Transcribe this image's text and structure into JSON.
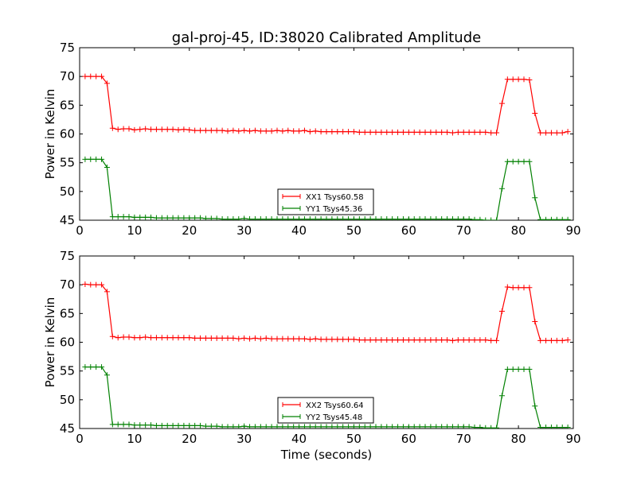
{
  "figure": {
    "title": "gal-proj-45, ID:38020 Calibrated Amplitude",
    "xlabel": "Time (seconds)"
  },
  "chart_data": [
    {
      "type": "line",
      "title": "gal-proj-45, ID:38020 Calibrated Amplitude",
      "xlabel": "",
      "ylabel": "Power in Kelvin",
      "xlim": [
        0,
        90
      ],
      "ylim": [
        45,
        75
      ],
      "xticks": [
        0,
        10,
        20,
        30,
        40,
        50,
        60,
        70,
        80,
        90
      ],
      "yticks": [
        45,
        50,
        55,
        60,
        65,
        70,
        75
      ],
      "grid": false,
      "legend_position": "bottom-center",
      "series": [
        {
          "name": "XX1 Tsys60.58",
          "color": "#ff0000",
          "marker": "+",
          "x": [
            1,
            2,
            3,
            4,
            5,
            6,
            7,
            8,
            9,
            10,
            11,
            12,
            13,
            14,
            15,
            16,
            17,
            18,
            19,
            20,
            21,
            22,
            23,
            24,
            25,
            26,
            27,
            28,
            29,
            30,
            31,
            32,
            33,
            34,
            35,
            36,
            37,
            38,
            39,
            40,
            41,
            42,
            43,
            44,
            45,
            46,
            47,
            48,
            49,
            50,
            51,
            52,
            53,
            54,
            55,
            56,
            57,
            58,
            59,
            60,
            61,
            62,
            63,
            64,
            65,
            66,
            67,
            68,
            69,
            70,
            71,
            72,
            73,
            74,
            75,
            76,
            77,
            78,
            79,
            80,
            81,
            82,
            83,
            84,
            85,
            86,
            87,
            88,
            89
          ],
          "y": [
            70.0,
            70.0,
            70.0,
            70.0,
            68.8,
            61.0,
            60.8,
            60.9,
            60.9,
            60.7,
            60.8,
            60.9,
            60.8,
            60.8,
            60.8,
            60.8,
            60.8,
            60.7,
            60.8,
            60.7,
            60.6,
            60.6,
            60.6,
            60.6,
            60.6,
            60.6,
            60.5,
            60.6,
            60.5,
            60.6,
            60.5,
            60.6,
            60.5,
            60.5,
            60.5,
            60.6,
            60.5,
            60.6,
            60.5,
            60.5,
            60.6,
            60.4,
            60.5,
            60.4,
            60.4,
            60.4,
            60.4,
            60.4,
            60.4,
            60.4,
            60.3,
            60.3,
            60.3,
            60.3,
            60.3,
            60.3,
            60.3,
            60.3,
            60.3,
            60.3,
            60.3,
            60.3,
            60.3,
            60.3,
            60.3,
            60.3,
            60.3,
            60.2,
            60.3,
            60.3,
            60.3,
            60.3,
            60.3,
            60.3,
            60.2,
            60.2,
            65.3,
            69.5,
            69.5,
            69.5,
            69.5,
            69.4,
            63.6,
            60.2,
            60.2,
            60.2,
            60.2,
            60.2,
            60.4
          ]
        },
        {
          "name": "YY1 Tsys45.36",
          "color": "#008000",
          "marker": "+",
          "x": [
            1,
            2,
            3,
            4,
            5,
            6,
            7,
            8,
            9,
            10,
            11,
            12,
            13,
            14,
            15,
            16,
            17,
            18,
            19,
            20,
            21,
            22,
            23,
            24,
            25,
            26,
            27,
            28,
            29,
            30,
            31,
            32,
            33,
            34,
            35,
            36,
            37,
            38,
            39,
            40,
            41,
            42,
            43,
            44,
            45,
            46,
            47,
            48,
            49,
            50,
            51,
            52,
            53,
            54,
            55,
            56,
            57,
            58,
            59,
            60,
            61,
            62,
            63,
            64,
            65,
            66,
            67,
            68,
            69,
            70,
            71,
            72,
            73,
            74,
            75,
            76,
            77,
            78,
            79,
            80,
            81,
            82,
            83,
            84,
            85,
            86,
            87,
            88,
            89
          ],
          "y": [
            55.6,
            55.6,
            55.6,
            55.6,
            54.2,
            45.6,
            45.6,
            45.6,
            45.6,
            45.5,
            45.5,
            45.5,
            45.5,
            45.4,
            45.4,
            45.4,
            45.4,
            45.4,
            45.4,
            45.4,
            45.4,
            45.4,
            45.3,
            45.3,
            45.3,
            45.2,
            45.2,
            45.2,
            45.2,
            45.3,
            45.2,
            45.2,
            45.2,
            45.2,
            45.2,
            45.2,
            45.2,
            45.2,
            45.2,
            45.2,
            45.2,
            45.2,
            45.2,
            45.2,
            45.2,
            45.2,
            45.2,
            45.2,
            45.2,
            45.2,
            45.2,
            45.2,
            45.2,
            45.2,
            45.2,
            45.2,
            45.2,
            45.2,
            45.2,
            45.2,
            45.2,
            45.2,
            45.2,
            45.2,
            45.2,
            45.2,
            45.2,
            45.2,
            45.2,
            45.2,
            45.2,
            45.1,
            45.1,
            45.0,
            45.0,
            45.0,
            50.5,
            55.2,
            55.2,
            55.2,
            55.2,
            55.2,
            48.9,
            45.1,
            45.1,
            45.1,
            45.1,
            45.1,
            45.1
          ]
        }
      ]
    },
    {
      "type": "line",
      "title": "",
      "xlabel": "Time (seconds)",
      "ylabel": "Power in Kelvin",
      "xlim": [
        0,
        90
      ],
      "ylim": [
        45,
        75
      ],
      "xticks": [
        0,
        10,
        20,
        30,
        40,
        50,
        60,
        70,
        80,
        90
      ],
      "yticks": [
        45,
        50,
        55,
        60,
        65,
        70,
        75
      ],
      "grid": false,
      "legend_position": "bottom-center",
      "series": [
        {
          "name": "XX2 Tsys60.64",
          "color": "#ff0000",
          "marker": "+",
          "x": [
            1,
            2,
            3,
            4,
            5,
            6,
            7,
            8,
            9,
            10,
            11,
            12,
            13,
            14,
            15,
            16,
            17,
            18,
            19,
            20,
            21,
            22,
            23,
            24,
            25,
            26,
            27,
            28,
            29,
            30,
            31,
            32,
            33,
            34,
            35,
            36,
            37,
            38,
            39,
            40,
            41,
            42,
            43,
            44,
            45,
            46,
            47,
            48,
            49,
            50,
            51,
            52,
            53,
            54,
            55,
            56,
            57,
            58,
            59,
            60,
            61,
            62,
            63,
            64,
            65,
            66,
            67,
            68,
            69,
            70,
            71,
            72,
            73,
            74,
            75,
            76,
            77,
            78,
            79,
            80,
            81,
            82,
            83,
            84,
            85,
            86,
            87,
            88,
            89
          ],
          "y": [
            70.1,
            70.0,
            70.0,
            70.0,
            68.8,
            61.0,
            60.8,
            60.9,
            60.9,
            60.8,
            60.8,
            60.9,
            60.8,
            60.8,
            60.8,
            60.8,
            60.8,
            60.8,
            60.8,
            60.8,
            60.7,
            60.7,
            60.7,
            60.7,
            60.7,
            60.7,
            60.7,
            60.7,
            60.6,
            60.7,
            60.6,
            60.7,
            60.6,
            60.7,
            60.6,
            60.6,
            60.6,
            60.6,
            60.6,
            60.6,
            60.6,
            60.5,
            60.6,
            60.5,
            60.5,
            60.5,
            60.5,
            60.5,
            60.5,
            60.5,
            60.4,
            60.4,
            60.4,
            60.4,
            60.4,
            60.4,
            60.4,
            60.4,
            60.4,
            60.4,
            60.4,
            60.4,
            60.4,
            60.4,
            60.4,
            60.4,
            60.4,
            60.3,
            60.4,
            60.4,
            60.4,
            60.4,
            60.4,
            60.4,
            60.3,
            60.3,
            65.4,
            69.6,
            69.5,
            69.5,
            69.5,
            69.5,
            63.6,
            60.3,
            60.3,
            60.3,
            60.3,
            60.3,
            60.4
          ]
        },
        {
          "name": "YY2 Tsys45.48",
          "color": "#008000",
          "marker": "+",
          "x": [
            1,
            2,
            3,
            4,
            5,
            6,
            7,
            8,
            9,
            10,
            11,
            12,
            13,
            14,
            15,
            16,
            17,
            18,
            19,
            20,
            21,
            22,
            23,
            24,
            25,
            26,
            27,
            28,
            29,
            30,
            31,
            32,
            33,
            34,
            35,
            36,
            37,
            38,
            39,
            40,
            41,
            42,
            43,
            44,
            45,
            46,
            47,
            48,
            49,
            50,
            51,
            52,
            53,
            54,
            55,
            56,
            57,
            58,
            59,
            60,
            61,
            62,
            63,
            64,
            65,
            66,
            67,
            68,
            69,
            70,
            71,
            72,
            73,
            74,
            75,
            76,
            77,
            78,
            79,
            80,
            81,
            82,
            83,
            84,
            85,
            86,
            87,
            88,
            89
          ],
          "y": [
            55.7,
            55.7,
            55.7,
            55.7,
            54.3,
            45.7,
            45.7,
            45.7,
            45.7,
            45.6,
            45.6,
            45.6,
            45.6,
            45.5,
            45.5,
            45.5,
            45.5,
            45.5,
            45.5,
            45.5,
            45.5,
            45.5,
            45.4,
            45.4,
            45.4,
            45.3,
            45.3,
            45.3,
            45.3,
            45.4,
            45.3,
            45.3,
            45.3,
            45.3,
            45.3,
            45.3,
            45.3,
            45.3,
            45.3,
            45.3,
            45.3,
            45.3,
            45.3,
            45.3,
            45.3,
            45.3,
            45.3,
            45.3,
            45.3,
            45.3,
            45.3,
            45.3,
            45.3,
            45.3,
            45.3,
            45.3,
            45.3,
            45.3,
            45.3,
            45.3,
            45.3,
            45.3,
            45.3,
            45.3,
            45.3,
            45.3,
            45.3,
            45.3,
            45.3,
            45.3,
            45.3,
            45.2,
            45.2,
            45.1,
            45.1,
            45.1,
            50.7,
            55.3,
            55.3,
            55.3,
            55.3,
            55.3,
            48.9,
            45.2,
            45.2,
            45.2,
            45.2,
            45.2,
            45.2
          ]
        }
      ]
    }
  ]
}
